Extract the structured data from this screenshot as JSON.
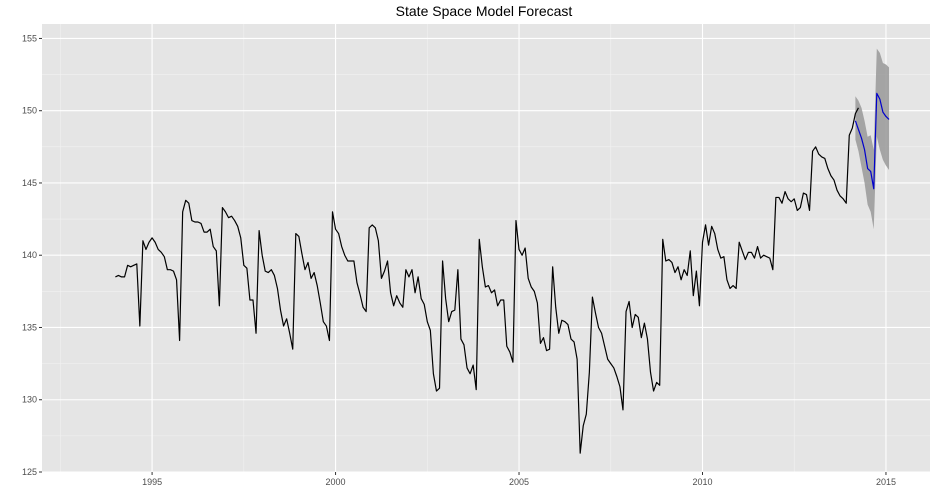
{
  "chart_data": {
    "type": "line",
    "title": "State Space Model Forecast",
    "xlabel": "",
    "ylabel": "",
    "xlim": [
      1992.0,
      2016.2
    ],
    "ylim": [
      125,
      156
    ],
    "x_ticks": [
      1995,
      2000,
      2005,
      2010,
      2015
    ],
    "y_ticks": [
      125,
      130,
      135,
      140,
      145,
      150,
      155
    ],
    "grid": true,
    "legend": "none",
    "colors": {
      "panel": "#e5e5e5",
      "grid_major": "#ffffff",
      "grid_minor": "#f2f2f2",
      "observed": "#000000",
      "forecast": "#0000cc",
      "interval": "#999999"
    },
    "series": [
      {
        "x_start": 1994.0,
        "x_step": 0.0833333,
        "values": [
          138.5,
          138.6,
          138.5,
          138.5,
          139.3,
          139.2,
          139.3,
          139.4,
          135.1,
          141.0,
          140.4,
          140.9,
          141.2,
          140.9,
          140.4,
          140.2,
          139.9,
          139.0,
          139.0,
          138.9,
          138.3,
          134.1,
          143.0,
          143.8,
          143.6,
          142.4,
          142.3,
          142.3,
          142.2,
          141.6,
          141.6,
          141.8,
          140.6,
          140.3,
          136.5,
          143.3,
          143.0,
          142.6,
          142.7,
          142.4,
          142.0,
          141.2,
          139.3,
          139.1,
          136.9,
          136.9,
          134.6,
          141.7,
          140.0,
          138.9,
          138.8,
          139.0,
          138.6,
          137.7,
          136.2,
          135.1,
          135.6,
          134.6,
          133.5,
          141.5,
          141.3,
          140.1,
          139.0,
          139.5,
          138.4,
          138.8,
          137.9,
          136.7,
          135.4,
          135.1,
          134.1,
          143.0,
          141.8,
          141.5,
          140.6,
          140.0,
          139.6,
          139.6,
          139.6,
          138.1,
          137.3,
          136.4,
          136.1,
          141.9,
          142.1,
          141.9,
          141.0,
          138.4,
          138.9,
          139.6,
          137.4,
          136.5,
          137.2,
          136.7,
          136.4,
          139.0,
          138.5,
          139.0,
          137.4,
          138.5,
          137.0,
          136.6,
          135.4,
          134.8,
          131.8,
          130.6,
          130.8,
          139.6,
          137.0,
          135.4,
          136.1,
          136.2,
          139.0,
          134.2,
          133.8,
          132.2,
          131.8,
          132.4,
          130.7,
          141.1,
          139.2,
          137.8,
          137.9,
          137.4,
          137.6,
          136.5,
          136.9,
          136.9,
          133.7,
          133.3,
          132.6,
          142.4,
          140.4,
          140.0,
          140.5,
          138.4,
          137.8,
          137.5,
          136.7,
          133.9,
          134.3,
          133.4,
          133.5,
          139.2,
          136.4,
          134.6,
          135.5,
          135.4,
          135.2,
          134.2,
          134.0,
          132.8,
          126.3,
          128.2,
          129.0,
          131.9,
          137.1,
          136.0,
          135.0,
          134.6,
          133.7,
          132.8,
          132.5,
          132.2,
          131.6,
          130.9,
          129.3,
          136.1,
          136.8,
          135.0,
          135.9,
          135.7,
          134.3,
          135.3,
          134.2,
          131.9,
          130.6,
          131.2,
          131.0,
          141.1,
          139.6,
          139.7,
          139.5,
          138.8,
          139.2,
          138.3,
          139.0,
          138.6,
          140.3,
          137.2,
          138.9,
          136.5,
          140.9,
          142.1,
          140.7,
          142.0,
          141.5,
          140.4,
          139.8,
          139.9,
          138.3,
          137.7,
          137.9,
          137.7,
          140.9,
          140.3,
          139.7,
          140.2,
          140.2,
          139.8,
          140.6,
          139.8,
          140.0,
          139.9,
          139.8,
          139.0,
          144.0,
          144.0,
          143.6,
          144.4,
          143.9,
          143.7,
          143.9,
          143.1,
          143.3,
          144.3,
          144.2,
          143.1,
          147.2,
          147.5,
          147.0,
          146.8,
          146.7,
          146.0,
          145.5,
          145.2,
          144.5,
          144.1,
          143.9,
          143.6,
          148.3,
          148.8,
          149.8,
          150.2
        ]
      },
      {
        "x_start": 2014.1667,
        "x_step": 0.0833333,
        "values": [
          149.3,
          148.7,
          148.1,
          147.3,
          146.0,
          145.8,
          144.6,
          151.2,
          150.8,
          149.9,
          149.6,
          149.4
        ],
        "interval_lower": [
          148.0,
          147.2,
          146.1,
          145.0,
          143.5,
          143.0,
          141.8,
          148.2,
          147.3,
          146.6,
          146.2,
          145.9
        ],
        "interval_upper": [
          151.0,
          150.7,
          150.2,
          149.3,
          148.2,
          148.3,
          147.3,
          154.3,
          154.0,
          153.3,
          153.2,
          153.0
        ]
      }
    ]
  }
}
